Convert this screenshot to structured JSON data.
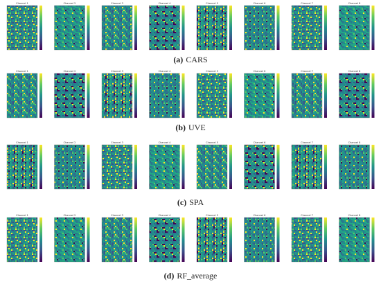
{
  "rows": [
    {
      "label": "(a)",
      "name": "CARS",
      "channels": [
        "Channel 1",
        "Channel 2",
        "Channel 3",
        "Channel 4",
        "Channel 5",
        "Channel 6",
        "Channel 7",
        "Channel 8"
      ]
    },
    {
      "label": "(b)",
      "name": "UVE",
      "channels": [
        "Channel 1",
        "Channel 2",
        "Channel 3",
        "Channel 4",
        "Channel 5",
        "Channel 6",
        "Channel 7",
        "Channel 8"
      ]
    },
    {
      "label": "(c)",
      "name": "SPA",
      "channels": [
        "Channel 1",
        "Channel 2",
        "Channel 3",
        "Channel 4",
        "Channel 5",
        "Channel 6",
        "Channel 7",
        "Channel 8"
      ]
    },
    {
      "label": "(d)",
      "name": "RF_average",
      "channels": [
        "Channel 1",
        "Channel 2",
        "Channel 3",
        "Channel 4",
        "Channel 5",
        "Channel 6",
        "Channel 7",
        "Channel 8"
      ]
    }
  ]
}
